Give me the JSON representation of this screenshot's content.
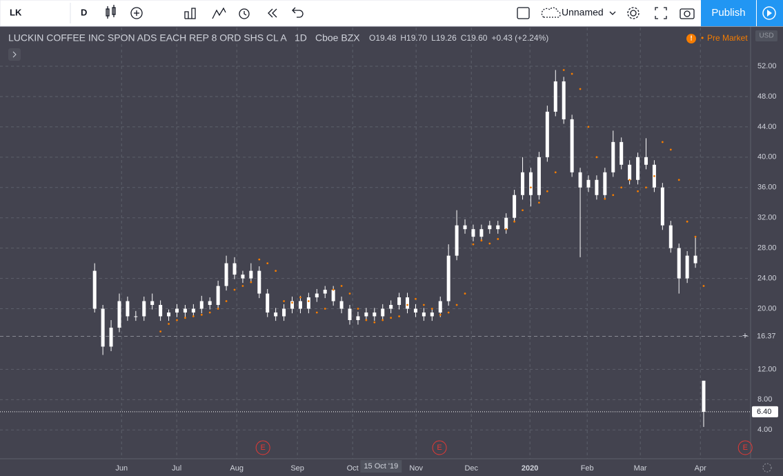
{
  "header": {
    "symbol": "LK",
    "interval": "D",
    "layout_name": "Unnamed",
    "publish": "Publish"
  },
  "chart_data": {
    "type": "candlestick",
    "title": "LUCKIN COFFEE INC SPON ADS EACH REP 8 ORD SHS CL A",
    "interval": "1D",
    "exchange": "Cboe BZX",
    "legend": [
      "O19.48",
      "H19.70",
      "L19.26",
      "C19.60",
      "+0.43 (+2.24%)"
    ],
    "currency": "USD",
    "session": "Pre Market",
    "color": "#ffffff",
    "sar_color": "#f57c00",
    "open": [
      25,
      20,
      15,
      17.5,
      21,
      19,
      19,
      21,
      20.5,
      19,
      19.5,
      20,
      19.5,
      20,
      21,
      20.5,
      23,
      26,
      24.5,
      24,
      25,
      22,
      19.5,
      19,
      20,
      21,
      20,
      21.5,
      22,
      22.5,
      21,
      20,
      18.5,
      19,
      19.5,
      19,
      20,
      20.5,
      21.5,
      20,
      19.5,
      19,
      19.5,
      21,
      27,
      31,
      30.5,
      29.5,
      30.5,
      31,
      30.5,
      32,
      35,
      38,
      35,
      40,
      46,
      50,
      45,
      38,
      36,
      37,
      35,
      38,
      42,
      39,
      37,
      40,
      39,
      36,
      31,
      28,
      24,
      27,
      10.5
    ],
    "high": [
      26,
      20.5,
      18.5,
      22,
      21.6,
      19.7,
      21.6,
      22,
      21.1,
      19.9,
      20.6,
      20.5,
      20.6,
      21.7,
      21.5,
      23.7,
      27,
      26.8,
      25,
      26,
      25.6,
      22.6,
      20.1,
      20.6,
      21.6,
      21.7,
      22.1,
      22.6,
      23,
      23,
      21.6,
      20.5,
      19.6,
      20.1,
      20.1,
      20.6,
      21.1,
      22.1,
      22.1,
      20.6,
      20.1,
      20.1,
      21.6,
      28.5,
      33,
      31.8,
      31.1,
      31.1,
      31.6,
      31.6,
      32.6,
      35.7,
      40,
      38.6,
      40.7,
      46.8,
      51.5,
      50.6,
      45.6,
      38.6,
      37.6,
      37.6,
      38.6,
      43.5,
      42.6,
      39.6,
      40.6,
      42.5,
      39.6,
      36.6,
      31.6,
      28.6,
      27.6,
      29.5,
      10.5
    ],
    "low": [
      19.5,
      13.9,
      14.4,
      16.9,
      18.4,
      18.4,
      18.4,
      19.9,
      18.4,
      18.4,
      18.9,
      18.9,
      18.9,
      19.4,
      19.9,
      19.9,
      22.4,
      23.9,
      23.4,
      23.4,
      21.4,
      18.9,
      18.4,
      18.4,
      19.4,
      19.4,
      19.4,
      20.9,
      21.4,
      20.4,
      19.4,
      17.9,
      17.9,
      18.4,
      18.4,
      18.4,
      19.4,
      19.9,
      19.4,
      18.9,
      18.4,
      18.4,
      18.9,
      20.4,
      26.4,
      29.9,
      28.9,
      28.9,
      29.9,
      29.9,
      29.9,
      31.4,
      34.4,
      33.5,
      34.4,
      39.4,
      45.4,
      44.4,
      37.4,
      26.8,
      35.4,
      34.4,
      34.4,
      37.4,
      38.4,
      36.4,
      36.4,
      38.4,
      35.4,
      30.4,
      27.4,
      22,
      23.4,
      25.4,
      4.4
    ],
    "close": [
      20,
      15,
      17.5,
      21,
      19,
      19,
      21,
      20.5,
      19,
      19.5,
      20,
      19.5,
      20,
      21,
      20.5,
      23,
      26,
      24.5,
      24,
      25,
      22,
      19.5,
      19,
      20,
      21,
      20,
      21.5,
      22,
      22.5,
      21,
      20,
      18.5,
      19,
      19.5,
      19,
      20,
      20.5,
      21.5,
      20,
      19.5,
      19,
      19.5,
      21,
      27,
      31,
      30.5,
      29.5,
      30.5,
      31,
      30.5,
      32,
      35,
      38,
      35,
      40,
      46,
      50,
      45,
      38,
      36,
      37,
      35,
      38,
      42,
      39,
      37,
      40,
      39,
      36,
      31,
      28,
      24,
      27,
      26,
      6.4
    ],
    "sar": [
      null,
      null,
      null,
      null,
      null,
      null,
      null,
      null,
      17,
      18,
      18.5,
      18.8,
      19,
      19.2,
      19.5,
      20,
      21,
      22.5,
      23,
      23.5,
      26.5,
      26,
      25,
      21,
      20.8,
      21.5,
      21,
      19.5,
      20,
      22.5,
      23,
      22,
      20,
      18.5,
      18.2,
      18.5,
      18.8,
      19,
      20.5,
      21.3,
      20.5,
      20,
      19.2,
      19.5,
      20.5,
      22,
      28.5,
      29,
      28.6,
      29.2,
      30.5,
      31.5,
      33,
      36,
      34,
      35.5,
      38,
      51.5,
      51,
      49,
      44,
      40,
      34.5,
      35,
      36,
      37,
      35.5,
      36,
      37.5,
      42,
      41,
      37,
      31.5,
      29.5,
      23
    ],
    "xlim": [
      -11.5,
      79.7
    ],
    "ylim": [
      0.2,
      57.1
    ],
    "xticks": [
      {
        "value": 3.27,
        "label": "Jun"
      },
      {
        "value": 9.97,
        "label": "Jul"
      },
      {
        "value": 17.27,
        "label": "Aug"
      },
      {
        "value": 24.64,
        "label": "Sep"
      },
      {
        "value": 31.35,
        "label": "Oct"
      },
      {
        "value": 39.06,
        "label": "Nov"
      },
      {
        "value": 45.77,
        "label": "Dec"
      },
      {
        "value": 52.89,
        "label": "2020"
      },
      {
        "value": 59.85,
        "label": "Feb"
      },
      {
        "value": 66.3,
        "label": "Mar"
      },
      {
        "value": 73.6,
        "label": "Apr"
      }
    ],
    "yticks": [
      {
        "value": 4,
        "label": "4.00"
      },
      {
        "value": 8,
        "label": "8.00"
      },
      {
        "value": 12,
        "label": "12.00"
      },
      {
        "value": 20,
        "label": "20.00"
      },
      {
        "value": 24,
        "label": "24.00"
      },
      {
        "value": 28,
        "label": "28.00"
      },
      {
        "value": 32,
        "label": "32.00"
      },
      {
        "value": 36,
        "label": "36.00"
      },
      {
        "value": 40,
        "label": "40.00"
      },
      {
        "value": 44,
        "label": "44.00"
      },
      {
        "value": 48,
        "label": "48.00"
      },
      {
        "value": 52,
        "label": "52.00"
      }
    ],
    "grid": true,
    "crosshair": {
      "price": {
        "value": 16.37,
        "label": "16.37"
      },
      "date": {
        "value": 34.8,
        "label": "15 Oct '19"
      }
    },
    "last_price": {
      "value": 6.4,
      "label": "6.40"
    },
    "earnings": [
      {
        "value": 20.45,
        "label": "E"
      },
      {
        "value": 41.9,
        "label": "E"
      },
      {
        "value": 79.05,
        "label": "E"
      }
    ]
  }
}
